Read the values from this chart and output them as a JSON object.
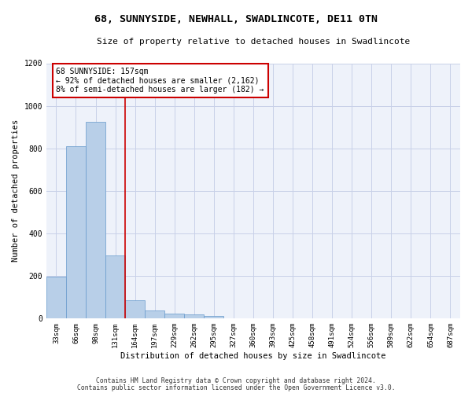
{
  "title": "68, SUNNYSIDE, NEWHALL, SWADLINCOTE, DE11 0TN",
  "subtitle": "Size of property relative to detached houses in Swadlincote",
  "xlabel": "Distribution of detached houses by size in Swadlincote",
  "ylabel": "Number of detached properties",
  "bar_values": [
    195,
    810,
    925,
    295,
    85,
    35,
    20,
    18,
    12,
    0,
    0,
    0,
    0,
    0,
    0,
    0,
    0,
    0,
    0,
    0,
    0
  ],
  "bar_labels": [
    "33sqm",
    "66sqm",
    "98sqm",
    "131sqm",
    "164sqm",
    "197sqm",
    "229sqm",
    "262sqm",
    "295sqm",
    "327sqm",
    "360sqm",
    "393sqm",
    "425sqm",
    "458sqm",
    "491sqm",
    "524sqm",
    "556sqm",
    "589sqm",
    "622sqm",
    "654sqm",
    "687sqm"
  ],
  "bar_color": "#b8cfe8",
  "bar_edge_color": "#6699cc",
  "background_color": "#eef2fa",
  "grid_color": "#c8d0e8",
  "vline_color": "#cc0000",
  "vline_x_index": 3.5,
  "annotation_text": "68 SUNNYSIDE: 157sqm\n← 92% of detached houses are smaller (2,162)\n8% of semi-detached houses are larger (182) →",
  "annotation_box_color": "#cc0000",
  "ylim": [
    0,
    1200
  ],
  "yticks": [
    0,
    200,
    400,
    600,
    800,
    1000,
    1200
  ],
  "footer_line1": "Contains HM Land Registry data © Crown copyright and database right 2024.",
  "footer_line2": "Contains public sector information licensed under the Open Government Licence v3.0."
}
